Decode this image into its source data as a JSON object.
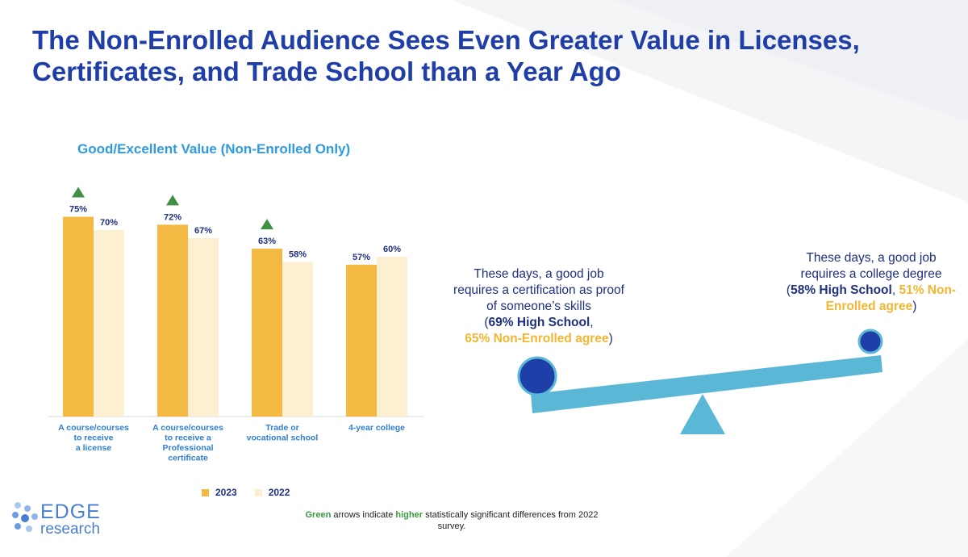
{
  "title": "The Non-Enrolled Audience Sees Even Greater Value in Licenses, Certificates, and Trade School than a Year Ago",
  "chart_title": "Good/Excellent Value (Non-Enrolled Only)",
  "colors": {
    "y2023": "#f4b942",
    "y2022": "#fcefd2",
    "arrow": "#3f8f44",
    "title": "#1f3ea8",
    "beam": "#5ab8d6",
    "ball": "#1f3fa8"
  },
  "chart_data": {
    "type": "bar",
    "title": "Good/Excellent Value (Non-Enrolled Only)",
    "categories": [
      [
        "A course/courses",
        "to receive",
        "a license"
      ],
      [
        "A course/courses",
        "to receive a",
        "Professional",
        "certificate"
      ],
      [
        "Trade or",
        "vocational school"
      ],
      [
        "4-year college"
      ]
    ],
    "series": [
      {
        "name": "2023",
        "values": [
          75,
          72,
          63,
          57
        ],
        "labels": [
          "75%",
          "72%",
          "63%",
          "57%"
        ]
      },
      {
        "name": "2022",
        "values": [
          70,
          67,
          58,
          60
        ],
        "labels": [
          "70%",
          "67%",
          "58%",
          "60%"
        ]
      }
    ],
    "significant_increase": [
      true,
      true,
      true,
      false
    ],
    "ylim": [
      0,
      100
    ],
    "xlabel": "",
    "ylabel": "",
    "legend_position": "bottom"
  },
  "legend": {
    "y2023": "2023",
    "y2022": "2022"
  },
  "statement_left": {
    "lines": [
      "These days, a good job",
      "requires a certification as proof",
      "of someone’s skills"
    ],
    "open": "(",
    "hs": "69% High School",
    "comma": ",",
    "ne": "65% Non-Enrolled agree",
    "close": ")"
  },
  "statement_right": {
    "lines": [
      "These days, a good job",
      "requires a college degree"
    ],
    "open": "(",
    "hs": "58% High School",
    "comma": ", ",
    "ne": "51% Non-Enrolled agree",
    "close": ")"
  },
  "footnote": {
    "green_word": "Green",
    "part1": " arrows indicate ",
    "higher_word": "higher",
    "part2": " statistically significant differences from 2022 survey."
  },
  "logo": {
    "edge": "EDGE",
    "research": "research"
  }
}
